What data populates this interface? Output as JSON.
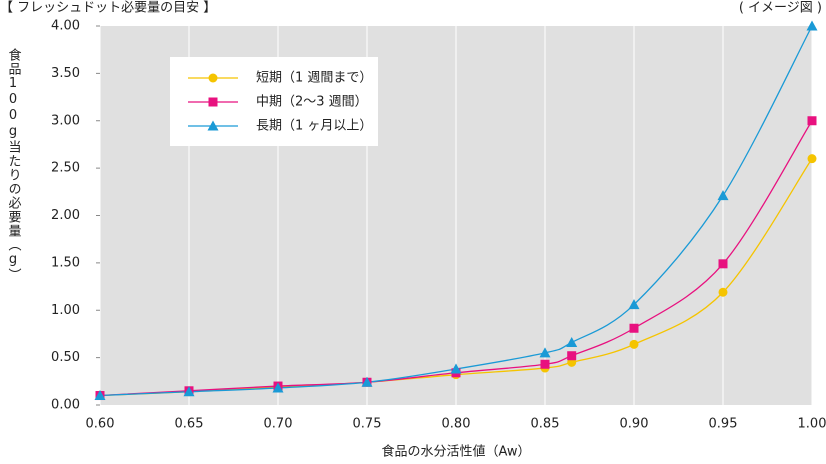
{
  "chart_data": {
    "type": "line",
    "title": "【 フレッシュドット必要量の目安 】",
    "subtitle": "( イメージ図 )",
    "x_label": "食品の水分活性値（Aw）",
    "y_label": "食品100g当たりの必要量（g）",
    "x": [
      0.6,
      0.65,
      0.7,
      0.75,
      0.8,
      0.85,
      0.865,
      0.9,
      0.95,
      1.0
    ],
    "series": [
      {
        "name": "短期（1 週間まで）",
        "color": "#f5c400",
        "marker": "circle",
        "values": [
          0.1,
          0.14,
          0.19,
          0.24,
          0.32,
          0.39,
          0.45,
          0.64,
          1.19,
          2.6
        ]
      },
      {
        "name": "中期（2～3 週間）",
        "color": "#e8117f",
        "marker": "square",
        "values": [
          0.1,
          0.15,
          0.2,
          0.24,
          0.34,
          0.43,
          0.52,
          0.81,
          1.49,
          3.0
        ]
      },
      {
        "name": "長期（1 ヶ月以上）",
        "color": "#1a9ad6",
        "marker": "triangle",
        "values": [
          0.1,
          0.14,
          0.18,
          0.24,
          0.38,
          0.55,
          0.66,
          1.06,
          2.21,
          4.0
        ]
      }
    ],
    "xlim": [
      0.6,
      1.0
    ],
    "xticks": [
      {
        "value": 0.6,
        "label": "0.60"
      },
      {
        "value": 0.65,
        "label": "0.65"
      },
      {
        "value": 0.7,
        "label": "0.70"
      },
      {
        "value": 0.75,
        "label": "0.75"
      },
      {
        "value": 0.8,
        "label": "0.80"
      },
      {
        "value": 0.85,
        "label": "0.85"
      },
      {
        "value": 0.9,
        "label": "0.90"
      },
      {
        "value": 0.95,
        "label": "0.95"
      },
      {
        "value": 1.0,
        "label": "1.00"
      }
    ],
    "ylim": [
      0,
      4
    ],
    "yticks": [
      {
        "value": 0,
        "label": "0.00"
      },
      {
        "value": 0.5,
        "label": "0.50"
      },
      {
        "value": 1,
        "label": "1.00"
      },
      {
        "value": 1.5,
        "label": "1.50"
      },
      {
        "value": 2,
        "label": "2.00"
      },
      {
        "value": 2.5,
        "label": "2.50"
      },
      {
        "value": 3,
        "label": "3.00"
      },
      {
        "value": 3.5,
        "label": "3.50"
      },
      {
        "value": 4,
        "label": "4.00"
      }
    ],
    "grid": true,
    "legend": "upper left"
  }
}
